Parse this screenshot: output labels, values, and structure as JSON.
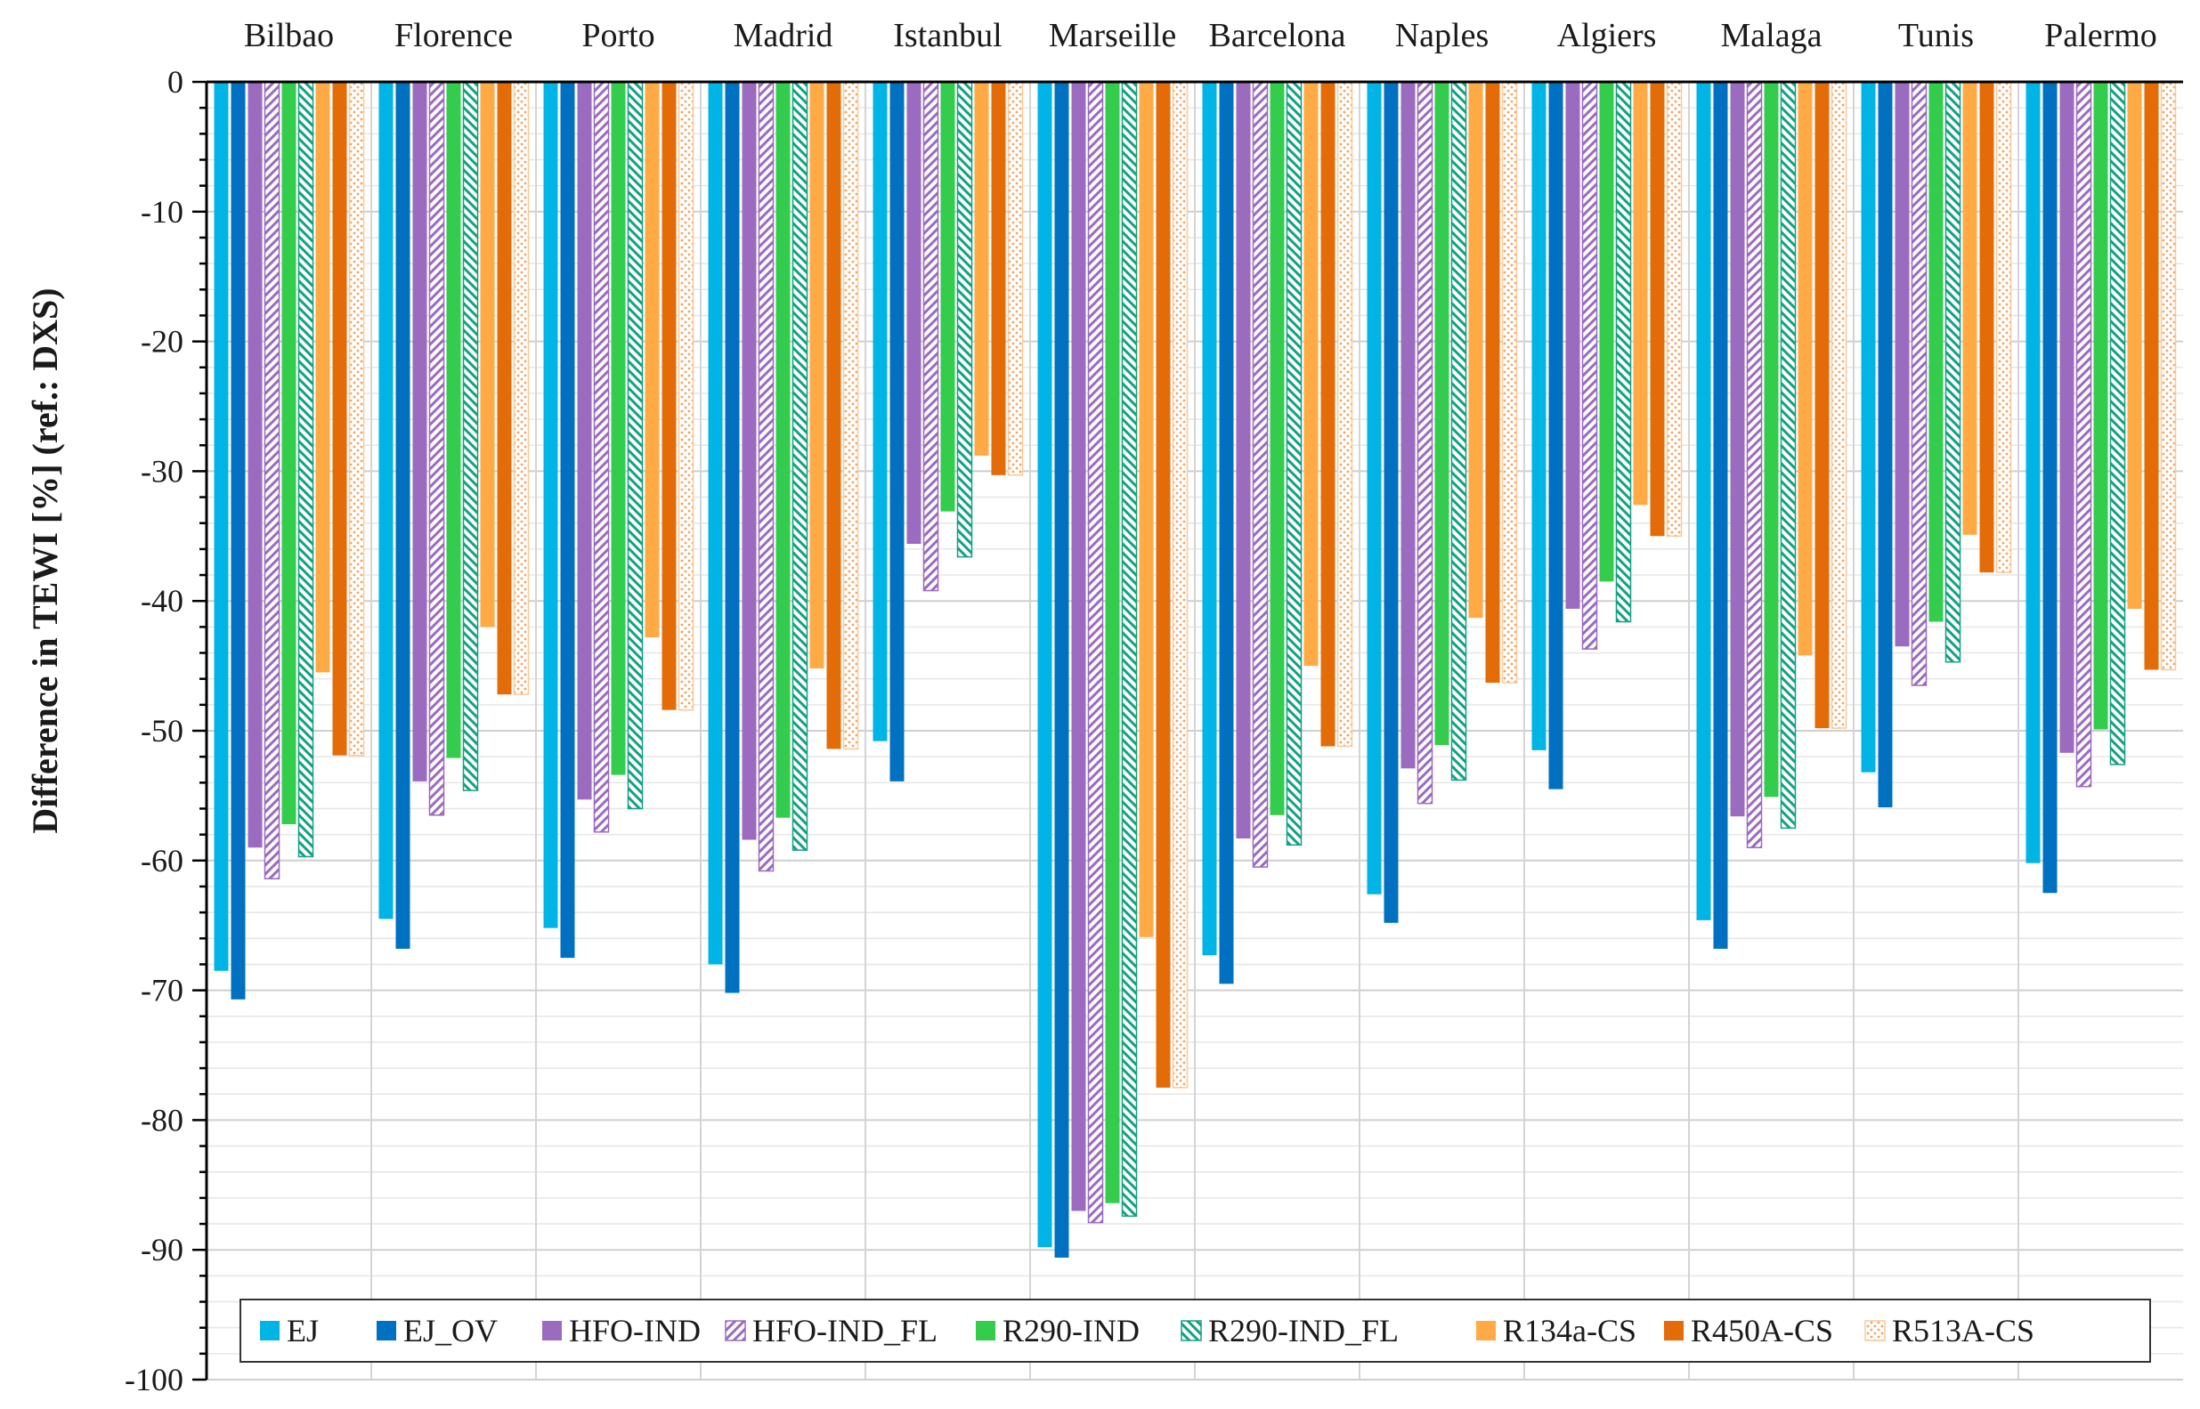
{
  "chart_data": {
    "type": "bar",
    "title": "",
    "xlabel": "",
    "ylabel": "Difference in TEWI [%] (ref.: DXS)",
    "ylim": [
      -100,
      0
    ],
    "yticks": [
      0,
      -10,
      -20,
      -30,
      -40,
      -50,
      -60,
      -70,
      -80,
      -90,
      -100
    ],
    "category_axis_position": "top",
    "legend_position": "bottom",
    "grid": true,
    "categories": [
      "Bilbao",
      "Florence",
      "Porto",
      "Madrid",
      "Istanbul",
      "Marseille",
      "Barcelona",
      "Naples",
      "Algiers",
      "Malaga",
      "Tunis",
      "Palermo"
    ],
    "series": [
      {
        "name": "EJ",
        "color": "#00b4e6",
        "pattern": "solid",
        "values": [
          -68.5,
          -64.5,
          -65.2,
          -68.0,
          -50.8,
          -89.8,
          -67.3,
          -62.6,
          -51.5,
          -64.6,
          -53.2,
          -60.2
        ]
      },
      {
        "name": "EJ_OV",
        "color": "#0070c0",
        "pattern": "solid",
        "values": [
          -70.7,
          -66.8,
          -67.5,
          -70.2,
          -53.9,
          -90.6,
          -69.5,
          -64.8,
          -54.5,
          -66.8,
          -55.9,
          -62.5
        ]
      },
      {
        "name": "HFO-IND",
        "color": "#9b6bbf",
        "pattern": "solid",
        "values": [
          -59.0,
          -53.9,
          -55.3,
          -58.4,
          -35.6,
          -87.0,
          -58.3,
          -52.9,
          -40.6,
          -56.6,
          -43.5,
          -51.7
        ]
      },
      {
        "name": "HFO-IND_FL",
        "color": "#9b6bbf",
        "pattern": "hatched",
        "values": [
          -61.4,
          -56.5,
          -57.8,
          -60.8,
          -39.2,
          -87.9,
          -60.5,
          -55.6,
          -43.7,
          -59.0,
          -46.5,
          -54.3
        ]
      },
      {
        "name": "R290-IND",
        "color": "#33cc4d",
        "pattern": "solid",
        "values": [
          -57.2,
          -52.1,
          -53.4,
          -56.7,
          -33.1,
          -86.4,
          -56.5,
          -51.1,
          -38.5,
          -55.1,
          -41.6,
          -49.9
        ]
      },
      {
        "name": "R290-IND_FL",
        "color": "#16a085",
        "pattern": "hatched",
        "values": [
          -59.7,
          -54.6,
          -56.0,
          -59.2,
          -36.6,
          -87.4,
          -58.8,
          -53.8,
          -41.6,
          -57.5,
          -44.7,
          -52.6
        ]
      },
      {
        "name": "R134a-CS",
        "color": "#ffaa44",
        "pattern": "solid",
        "values": [
          -45.5,
          -42.0,
          -42.8,
          -45.2,
          -28.8,
          -65.9,
          -45.0,
          -41.3,
          -32.6,
          -44.2,
          -34.9,
          -40.6
        ]
      },
      {
        "name": "R450A-CS",
        "color": "#e36c09",
        "pattern": "solid",
        "values": [
          -51.9,
          -47.2,
          -48.4,
          -51.4,
          -30.3,
          -77.5,
          -51.2,
          -46.3,
          -35.0,
          -49.8,
          -37.8,
          -45.3
        ]
      },
      {
        "name": "R513A-CS",
        "color": "#fbc99a",
        "pattern": "dotted",
        "values": [
          -51.9,
          -47.2,
          -48.4,
          -51.4,
          -30.3,
          -77.5,
          -51.2,
          -46.3,
          -35.0,
          -49.8,
          -37.8,
          -45.3
        ]
      }
    ]
  }
}
